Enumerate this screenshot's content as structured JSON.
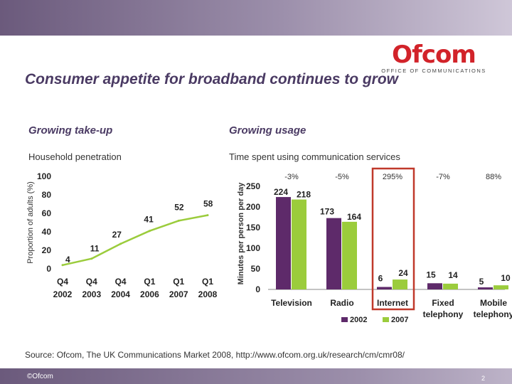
{
  "header": {
    "logo_text": "Ofcom",
    "logo_subtext": "OFFICE OF COMMUNICATIONS",
    "title": "Consumer appetite for broadband continues to grow"
  },
  "left": {
    "heading": "Growing take-up",
    "subtitle": "Household penetration"
  },
  "right": {
    "heading": "Growing usage",
    "subtitle": "Time spent using communication services"
  },
  "chart_data": [
    {
      "type": "line",
      "title": "Household penetration",
      "ylabel": "Proportion of adults (%)",
      "xlabel": "",
      "ylim": [
        0,
        100
      ],
      "yticks": [
        0,
        20,
        40,
        60,
        80,
        100
      ],
      "categories": [
        {
          "top": "Q4",
          "bottom": "2002"
        },
        {
          "top": "Q4",
          "bottom": "2003"
        },
        {
          "top": "Q4",
          "bottom": "2004"
        },
        {
          "top": "Q1",
          "bottom": "2006"
        },
        {
          "top": "Q1",
          "bottom": "2007"
        },
        {
          "top": "Q1",
          "bottom": "2008"
        }
      ],
      "values": [
        4,
        11,
        27,
        41,
        52,
        58
      ],
      "color": "#9bcc3c"
    },
    {
      "type": "bar",
      "title": "Time spent using communication services",
      "ylabel": "Minutes per person per day",
      "ylim": [
        0,
        250
      ],
      "yticks": [
        0,
        50,
        100,
        150,
        200,
        250
      ],
      "categories": [
        "Television",
        "Radio",
        "Internet",
        "Fixed telephony",
        "Mobile telephony"
      ],
      "changes": [
        "-3%",
        "-5%",
        "295%",
        "-7%",
        "88%"
      ],
      "series": [
        {
          "name": "2002",
          "values": [
            224,
            173,
            6,
            15,
            5
          ],
          "color": "#5e2a6a"
        },
        {
          "name": "2007",
          "values": [
            218,
            164,
            24,
            14,
            10
          ],
          "color": "#9bcc3c"
        }
      ],
      "highlight": "Internet",
      "highlight_color": "#c0392b"
    }
  ],
  "source": "Source: Ofcom, The UK Communications Market 2008, http://www.ofcom.org.uk/research/cm/cmr08/",
  "footer": {
    "copyright": "©Ofcom",
    "page_number": "2"
  }
}
